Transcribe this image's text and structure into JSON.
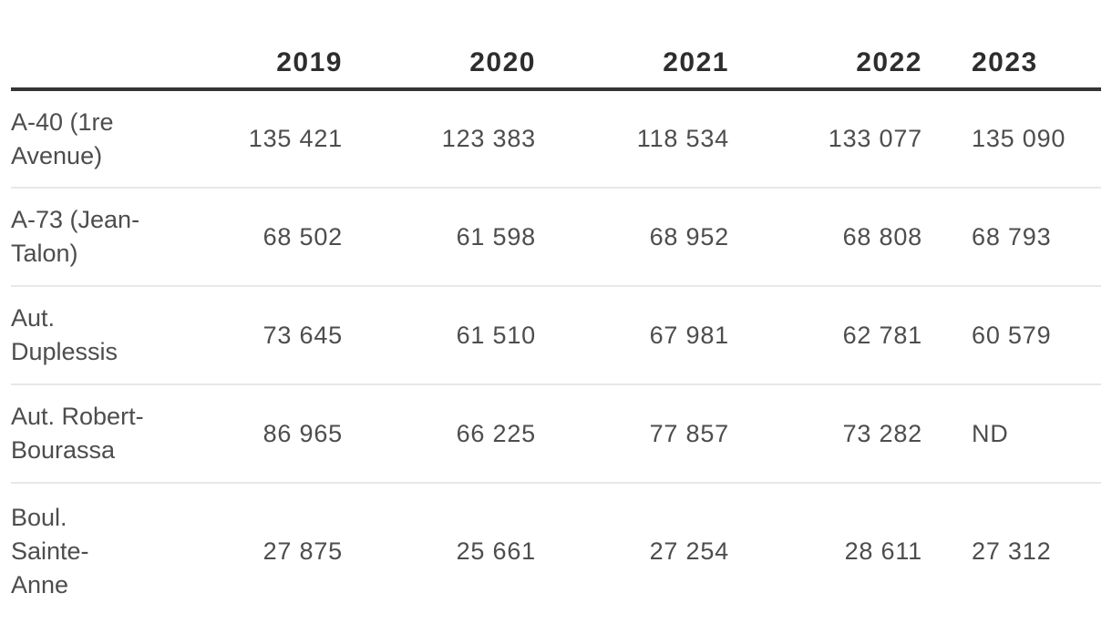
{
  "table": {
    "columns": [
      "",
      "2019",
      "2020",
      "2021",
      "2022",
      "2023"
    ],
    "rows": [
      {
        "label": "A-40 (1re Avenue)",
        "values": [
          "135 421",
          "123 383",
          "118 534",
          "133 077",
          "135 090"
        ]
      },
      {
        "label": "A-73 (Jean-Talon)",
        "values": [
          "68 502",
          "61 598",
          "68 952",
          "68 808",
          "68 793"
        ]
      },
      {
        "label": "Aut. Duplessis",
        "values": [
          "73 645",
          "61 510",
          "67 981",
          "62 781",
          "60 579"
        ]
      },
      {
        "label": "Aut. Robert-Bourassa",
        "values": [
          "86 965",
          "66 225",
          "77 857",
          "73 282",
          "ND"
        ]
      },
      {
        "label": "Boul. Sainte-Anne",
        "values": [
          "27 875",
          "25 661",
          "27 254",
          "28 611",
          "27 312"
        ]
      }
    ],
    "missing_value_label": "ND"
  },
  "colors": {
    "background": "#ffffff",
    "header_text": "#2d2d2d",
    "body_text": "#4d4d4d",
    "header_rule": "#343434",
    "row_divider": "#e8e8e8"
  },
  "chart_data": {
    "type": "table",
    "columns": [
      "2019",
      "2020",
      "2021",
      "2022",
      "2023"
    ],
    "row_labels": [
      "A-40 (1re Avenue)",
      "A-73 (Jean-Talon)",
      "Aut. Duplessis",
      "Aut. Robert-Bourassa",
      "Boul. Sainte-Anne"
    ],
    "values": [
      [
        135421,
        123383,
        118534,
        133077,
        135090
      ],
      [
        68502,
        61598,
        68952,
        68808,
        68793
      ],
      [
        73645,
        61510,
        67981,
        62781,
        60579
      ],
      [
        86965,
        66225,
        77857,
        73282,
        "ND"
      ],
      [
        27875,
        25661,
        27254,
        28611,
        27312
      ]
    ],
    "missing_value_label": "ND",
    "layout_hints": {
      "year_columns_alignment": "right",
      "last_column_alignment": "left",
      "header_rule": "thick-dark",
      "row_dividers": "light-gray"
    }
  }
}
